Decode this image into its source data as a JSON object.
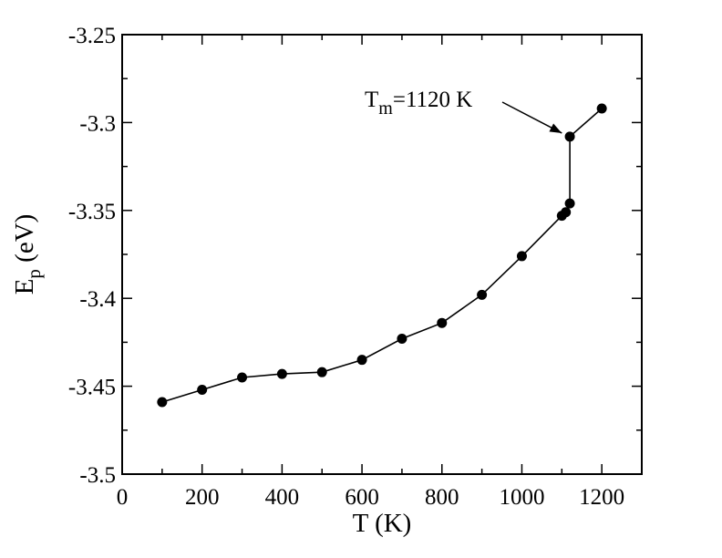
{
  "chart_data": {
    "type": "line",
    "title": "",
    "xlabel": "T (K)",
    "ylabel_main": "E",
    "ylabel_sub": "p",
    "ylabel_rest": " (eV)",
    "xlim": [
      0,
      1300
    ],
    "ylim": [
      -3.5,
      -3.25
    ],
    "x_ticks": [
      0,
      200,
      400,
      600,
      800,
      1000,
      1200
    ],
    "x_tick_labels": [
      "0",
      "200",
      "400",
      "600",
      "800",
      "1000",
      "1200"
    ],
    "y_ticks": [
      -3.25,
      -3.3,
      -3.35,
      -3.4,
      -3.45,
      -3.5
    ],
    "y_tick_labels": [
      "-3.25",
      "-3.3",
      "-3.35",
      "-3.4",
      "-3.45",
      "-3.5"
    ],
    "grid": false,
    "series": [
      {
        "x": [
          100,
          200,
          300,
          400,
          500,
          600,
          700,
          800,
          900,
          1000,
          1100,
          1110,
          1120,
          1120,
          1200
        ],
        "y": [
          -3.459,
          -3.452,
          -3.445,
          -3.443,
          -3.442,
          -3.435,
          -3.423,
          -3.414,
          -3.398,
          -3.376,
          -3.353,
          -3.351,
          -3.346,
          -3.308,
          -3.292
        ],
        "color": "#000000",
        "marker": "circle"
      }
    ],
    "annotation": {
      "text_main": "T",
      "text_sub": "m",
      "text_rest": "=1120 K",
      "points_to": {
        "x": 1100,
        "y": -3.306
      }
    }
  }
}
